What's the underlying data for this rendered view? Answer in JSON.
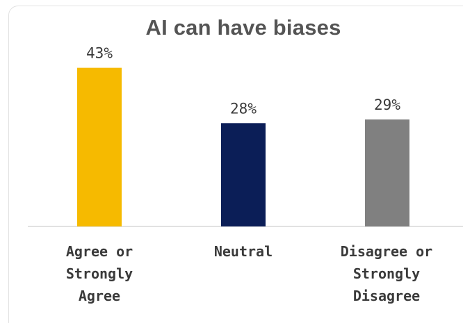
{
  "chart_data": {
    "type": "bar",
    "title": "AI can have biases",
    "categories": [
      "Agree or\nStrongly\nAgree",
      "Neutral",
      "Disagree or\nStrongly\nDisagree"
    ],
    "values": [
      43,
      28,
      29
    ],
    "data_labels": [
      "43%",
      "28%",
      "29%"
    ],
    "colors": [
      "#F6BA00",
      "#0B1E57",
      "#808080"
    ],
    "ylim": [
      0,
      45
    ],
    "grid": false,
    "legend": "none"
  }
}
